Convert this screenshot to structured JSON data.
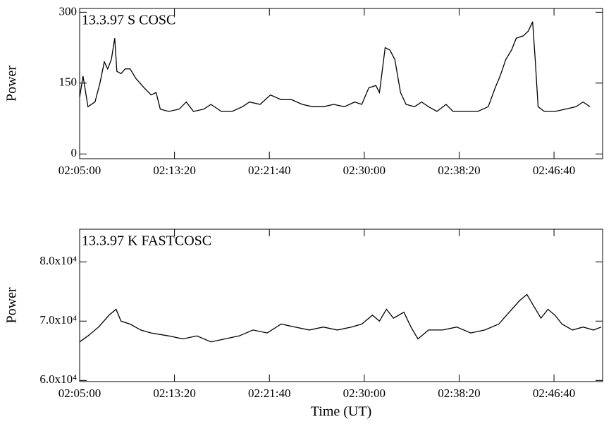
{
  "chart_data": [
    {
      "type": "line",
      "annotation": "13.3.97 S COSC",
      "ylabel": "Power",
      "color": "#000000",
      "x": [
        7500,
        7518,
        7544,
        7581,
        7607,
        7630,
        7648,
        7667,
        7685,
        7696,
        7718,
        7740,
        7766,
        7796,
        7840,
        7877,
        7903,
        7925,
        7970,
        8025,
        8062,
        8100,
        8155,
        8192,
        8247,
        8303,
        8358,
        8395,
        8451,
        8506,
        8562,
        8617,
        8673,
        8728,
        8784,
        8839,
        8895,
        8950,
        8987,
        9024,
        9061,
        9080,
        9110,
        9135,
        9161,
        9191,
        9220,
        9265,
        9302,
        9339,
        9383,
        9431,
        9468,
        9524,
        9598,
        9653,
        9690,
        9716,
        9746,
        9776,
        9801,
        9838,
        9864,
        9887,
        9901,
        9916,
        9949,
        10005,
        10060,
        10116,
        10153,
        10190
      ],
      "values": [
        120,
        165,
        100,
        110,
        150,
        195,
        180,
        200,
        245,
        175,
        170,
        180,
        180,
        160,
        140,
        125,
        130,
        95,
        90,
        95,
        110,
        90,
        95,
        105,
        90,
        90,
        100,
        110,
        105,
        125,
        115,
        115,
        105,
        100,
        100,
        105,
        100,
        110,
        105,
        140,
        145,
        130,
        225,
        220,
        200,
        130,
        105,
        100,
        110,
        100,
        90,
        105,
        90,
        90,
        90,
        100,
        140,
        165,
        200,
        220,
        245,
        250,
        260,
        280,
        200,
        100,
        90,
        90,
        95,
        100,
        110,
        100
      ],
      "xlim": [
        7500,
        10256
      ],
      "ylim": [
        -10,
        308
      ],
      "yticks": [
        0,
        150,
        300
      ],
      "xticks": [
        {
          "value": 7500,
          "label": "02:05:00"
        },
        {
          "value": 8000,
          "label": "02:13:20"
        },
        {
          "value": 8500,
          "label": "02:21:40"
        },
        {
          "value": 9000,
          "label": "02:30:00"
        },
        {
          "value": 9500,
          "label": "02:38:20"
        },
        {
          "value": 10000,
          "label": "02:46:40"
        }
      ]
    },
    {
      "type": "line",
      "annotation": "13.3.97 K FASTCOSC",
      "ylabel": "Power",
      "xlabel": "Time (UT)",
      "color": "#000000",
      "x": [
        7500,
        7544,
        7600,
        7655,
        7692,
        7718,
        7766,
        7822,
        7877,
        7970,
        8044,
        8118,
        8192,
        8266,
        8340,
        8414,
        8488,
        8562,
        8636,
        8710,
        8784,
        8858,
        8932,
        8987,
        9043,
        9080,
        9117,
        9154,
        9209,
        9246,
        9283,
        9339,
        9413,
        9487,
        9561,
        9635,
        9709,
        9764,
        9820,
        9857,
        9894,
        9931,
        9968,
        10005,
        10042,
        10097,
        10153,
        10208,
        10249
      ],
      "values": [
        66500,
        67500,
        69000,
        71000,
        72000,
        70000,
        69500,
        68500,
        68000,
        67500,
        67000,
        67500,
        66500,
        67000,
        67500,
        68500,
        68000,
        69500,
        69000,
        68500,
        69000,
        68500,
        69000,
        69500,
        71000,
        70000,
        72000,
        70500,
        71500,
        69000,
        67000,
        68500,
        68500,
        69000,
        68000,
        68500,
        69500,
        71500,
        73500,
        74500,
        72500,
        70500,
        72000,
        71000,
        69500,
        68500,
        69000,
        68500,
        69000
      ],
      "xlim": [
        7500,
        10256
      ],
      "ylim": [
        59800,
        85500
      ],
      "yticks": [
        {
          "value": 60000,
          "label": "6.0x10⁴"
        },
        {
          "value": 70000,
          "label": "7.0x10⁴"
        },
        {
          "value": 80000,
          "label": "8.0x10⁴"
        }
      ],
      "xticks": [
        {
          "value": 7500,
          "label": "02:05:00"
        },
        {
          "value": 8000,
          "label": "02:13:20"
        },
        {
          "value": 8500,
          "label": "02:21:40"
        },
        {
          "value": 9000,
          "label": "02:30:00"
        },
        {
          "value": 9500,
          "label": "02:38:20"
        },
        {
          "value": 10000,
          "label": "02:46:40"
        }
      ]
    }
  ]
}
